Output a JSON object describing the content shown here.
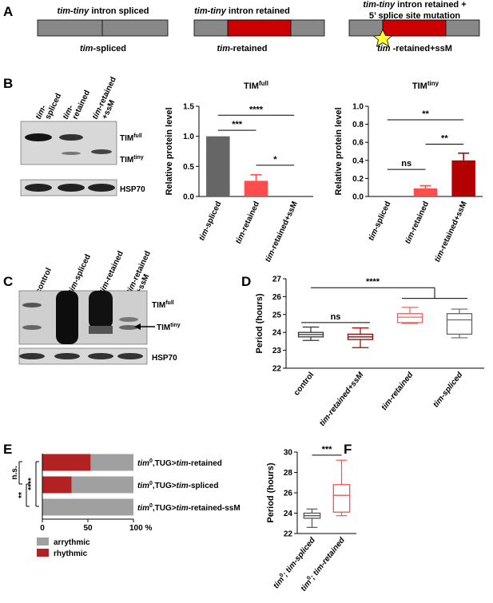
{
  "panel_labels": {
    "a": "A",
    "b": "B",
    "c": "C",
    "d": "D",
    "e": "E",
    "f": "F"
  },
  "panel_a": {
    "top": [
      {
        "i": "tim-tiny",
        "r": " intron spliced"
      },
      {
        "i": "tim-tiny",
        "r": " intron retained"
      },
      {
        "i": "tim-tiny",
        "r": " intron retained +"
      }
    ],
    "top2": "5’ splice site mutation",
    "bottom": [
      {
        "i": "tim",
        "r": "-spliced"
      },
      {
        "i": "tim",
        "r": "-retained"
      },
      {
        "i": "tim",
        "r": " -retained+ssM"
      }
    ],
    "colors": {
      "exon": "#888888",
      "intron": "#cc0000",
      "star": "#ffff33"
    }
  },
  "blot_b": {
    "lanes": [
      {
        "i": "tim-",
        "r": "spliced",
        "l2": ""
      },
      {
        "i": "tim-",
        "r": "retained",
        "l2": ""
      },
      {
        "i": "tim",
        "r": "-retained",
        "l2": "+ssM"
      }
    ],
    "timfull": {
      "base": "TIM",
      "sup": "full"
    },
    "timtiny": {
      "base": "TIM",
      "sup": "tiny"
    },
    "hsp": "HSP70"
  },
  "blot_c": {
    "lanes": [
      {
        "i": "",
        "r": "control",
        "l2": ""
      },
      {
        "i": "tim",
        "r": "-spliced",
        "l2": ""
      },
      {
        "i": "tim",
        "r": "-retained",
        "l2": ""
      },
      {
        "i": "tim",
        "r": "-retained",
        "l2": "+ssM"
      }
    ],
    "timfull": {
      "base": "TIM",
      "sup": "full"
    },
    "timtiny": {
      "base": "TIM",
      "sup": "tiny"
    },
    "hsp": "HSP70"
  },
  "chart_data": [
    {
      "id": "b-full",
      "type": "bar",
      "title": {
        "base": "TIM",
        "sup": "full"
      },
      "ylabel": "Relative protein level",
      "ylim": [
        0,
        1.5
      ],
      "yticks": [
        "0.0",
        "0.5",
        "1.0",
        "1.5"
      ],
      "categories": [
        {
          "i": "tim",
          "r": "-spliced"
        },
        {
          "i": "tim",
          "r": "-retained"
        },
        {
          "i": "tim",
          "r": "-retained+ssM"
        }
      ],
      "values": [
        1.0,
        0.26,
        0.0
      ],
      "errors": [
        0,
        0.1,
        0
      ],
      "colors": [
        "#666666",
        "#ff4d4d",
        "#b30000"
      ],
      "sig": [
        {
          "from": 0,
          "to": 1,
          "level": 1.1,
          "label": "***"
        },
        {
          "from": 1,
          "to": 2,
          "level": 0.52,
          "label": "*"
        },
        {
          "from": 0,
          "to": 2,
          "level": 1.35,
          "label": "****"
        }
      ]
    },
    {
      "id": "b-tiny",
      "type": "bar",
      "title": {
        "base": "TIM",
        "sup": "tiny"
      },
      "ylabel": "Relative protein level",
      "ylim": [
        0,
        1.0
      ],
      "yticks": [
        "0.0",
        "0.2",
        "0.4",
        "0.6",
        "0.8",
        "1.0"
      ],
      "categories": [
        {
          "i": "tim",
          "r": "-spliced"
        },
        {
          "i": "tim",
          "r": "-retained"
        },
        {
          "i": "tim",
          "r": "-retained+ssM"
        }
      ],
      "values": [
        0.0,
        0.09,
        0.4
      ],
      "errors": [
        0,
        0.03,
        0.08
      ],
      "colors": [
        "#666666",
        "#ff4d4d",
        "#b30000"
      ],
      "sig": [
        {
          "from": 0,
          "to": 1,
          "level": 0.3,
          "label": "ns"
        },
        {
          "from": 1,
          "to": 2,
          "level": 0.58,
          "label": "**"
        },
        {
          "from": 0,
          "to": 2,
          "level": 0.85,
          "label": "**"
        }
      ]
    },
    {
      "id": "d",
      "type": "box",
      "ylabel": "Period (hours)",
      "ylim": [
        22,
        27
      ],
      "yticks": [
        "22",
        "23",
        "24",
        "25",
        "26",
        "27"
      ],
      "categories": [
        {
          "i": "",
          "r": "control"
        },
        {
          "i": "tim",
          "r": "-retained+ssM"
        },
        {
          "i": "tim",
          "r": "-retained"
        },
        {
          "i": "tim",
          "r": "-spliced"
        }
      ],
      "boxes": [
        {
          "min": 23.55,
          "q1": 23.75,
          "med": 23.88,
          "q3": 24.0,
          "max": 24.3
        },
        {
          "min": 23.15,
          "q1": 23.6,
          "med": 23.75,
          "q3": 23.9,
          "max": 24.25
        },
        {
          "min": 24.5,
          "q1": 24.55,
          "med": 24.85,
          "q3": 25.05,
          "max": 25.4
        },
        {
          "min": 23.7,
          "q1": 23.9,
          "med": 24.7,
          "q3": 25.05,
          "max": 25.3
        }
      ],
      "colors": [
        "#333333",
        "#990000",
        "#ff5c5c",
        "#666666"
      ],
      "sig": [
        {
          "label": "ns"
        },
        {
          "label": "****"
        }
      ]
    },
    {
      "id": "e",
      "type": "bar",
      "orientation": "horizontal-stacked",
      "xlim": [
        0,
        100
      ],
      "xticks": [
        "0",
        "50",
        "100 %"
      ],
      "categories": [
        {
          "sup": "0",
          "pre": "tim",
          "mid": ",TUG>",
          "post": "tim",
          "rest": "-retained"
        },
        {
          "sup": "0",
          "pre": "tim",
          "mid": ",TUG>",
          "post": "tim",
          "rest": "-spliced"
        },
        {
          "sup": "0",
          "pre": "tim",
          "mid": ",TUG>",
          "post": "tim",
          "rest": "-retained-ssM"
        }
      ],
      "series": [
        {
          "name": "rhythmic",
          "color": "#b22222",
          "values": [
            53,
            32,
            0
          ]
        },
        {
          "name": "arrythmic",
          "color": "#a0a0a0",
          "values": [
            47,
            68,
            100
          ]
        }
      ],
      "sig": [
        {
          "label": "n.s."
        },
        {
          "label": "**"
        },
        {
          "label": "****"
        }
      ]
    },
    {
      "id": "f",
      "type": "box",
      "ylabel": "Period (hours)",
      "ylim": [
        22,
        30
      ],
      "yticks": [
        "22",
        "24",
        "26",
        "28",
        "30"
      ],
      "categories": [
        {
          "i": "tim",
          "sup": "0",
          "r": "; tim-spliced"
        },
        {
          "i": "tim",
          "sup": "0",
          "r": "; tim-retained"
        }
      ],
      "boxes": [
        {
          "min": 22.6,
          "q1": 23.5,
          "med": 23.75,
          "q3": 24.0,
          "max": 24.4
        },
        {
          "min": 23.75,
          "q1": 24.1,
          "med": 25.75,
          "q3": 26.8,
          "max": 29.2
        }
      ],
      "colors": [
        "#555555",
        "#ff4d4d"
      ],
      "sig": [
        {
          "label": "***"
        }
      ]
    }
  ]
}
